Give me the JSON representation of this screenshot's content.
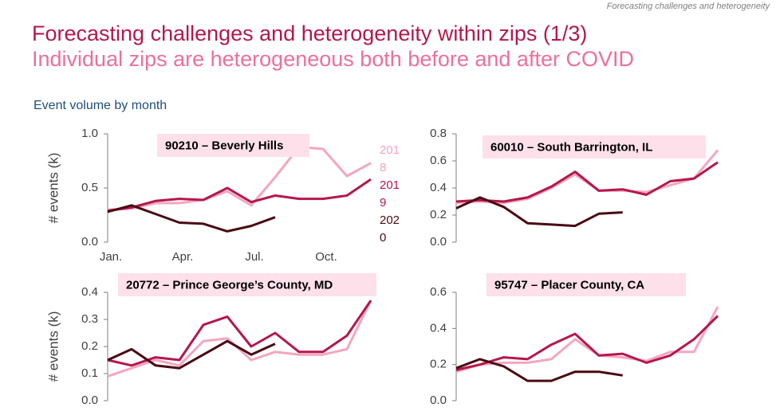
{
  "header": "Forecasting challenges and heterogeneity",
  "title": "Forecasting challenges and heterogeneity within zips (1/3)",
  "subtitle": "Individual zips are heterogeneous both before and after COVID",
  "section_title": "Event volume by month",
  "chart_data": [
    {
      "type": "line",
      "title": "90210 – Beverly Hills",
      "y_label": "# events (k)",
      "categories": [
        "Jan.",
        null,
        null,
        "Apr.",
        null,
        null,
        "Jul.",
        null,
        null,
        "Oct.",
        null,
        null
      ],
      "ylim": [
        0,
        1
      ],
      "yticks": [
        {
          "value": 0,
          "label": "0.0"
        },
        0.5,
        {
          "value": 1,
          "label": "1.0"
        }
      ],
      "legend": true,
      "series": [
        {
          "name": "2018",
          "color": "#f4a6bf",
          "values": [
            0.3,
            0.31,
            0.36,
            0.36,
            0.39,
            0.47,
            0.34,
            0.6,
            0.88,
            0.86,
            0.61,
            0.73
          ]
        },
        {
          "name": "2019",
          "color": "#b5174d",
          "values": [
            0.29,
            0.32,
            0.38,
            0.4,
            0.39,
            0.5,
            0.37,
            0.43,
            0.4,
            0.4,
            0.43,
            0.58
          ]
        },
        {
          "name": "2020",
          "color": "#4a0a12",
          "values": [
            0.28,
            0.34,
            0.26,
            0.18,
            0.17,
            0.1,
            0.15,
            0.23,
            null,
            null,
            null,
            null
          ]
        }
      ]
    },
    {
      "type": "line",
      "title": "60010 – South Barrington, IL",
      "ylim": [
        0,
        0.8
      ],
      "yticks": [
        {
          "value": 0,
          "label": "0.0"
        },
        0.2,
        0.4,
        0.6,
        0.8
      ],
      "series": [
        {
          "color": "#f4a6bf",
          "values": [
            0.29,
            0.3,
            0.29,
            0.32,
            0.4,
            0.5,
            0.38,
            0.38,
            0.37,
            0.42,
            0.47,
            0.68
          ]
        },
        {
          "color": "#b5174d",
          "values": [
            0.3,
            0.31,
            0.3,
            0.33,
            0.41,
            0.52,
            0.38,
            0.39,
            0.35,
            0.45,
            0.47,
            0.59
          ]
        },
        {
          "color": "#4a0a12",
          "values": [
            0.25,
            0.33,
            0.26,
            0.14,
            0.13,
            0.12,
            0.21,
            0.22,
            null,
            null,
            null,
            null
          ]
        }
      ]
    },
    {
      "type": "line",
      "title": "20772 – Prince George’s County, MD",
      "y_label": "# events (k)",
      "ylim": [
        0,
        0.4
      ],
      "yticks": [
        {
          "value": 0,
          "label": "0.0"
        },
        0.1,
        0.2,
        0.3,
        0.4
      ],
      "series": [
        {
          "color": "#f4a6bf",
          "values": [
            0.09,
            0.12,
            0.15,
            0.13,
            0.22,
            0.23,
            0.15,
            0.18,
            0.17,
            0.17,
            0.19,
            0.37
          ]
        },
        {
          "color": "#b5174d",
          "values": [
            0.15,
            0.13,
            0.16,
            0.15,
            0.28,
            0.31,
            0.2,
            0.25,
            0.18,
            0.18,
            0.24,
            0.37
          ]
        },
        {
          "color": "#4a0a12",
          "values": [
            0.15,
            0.19,
            0.13,
            0.12,
            0.17,
            0.22,
            0.17,
            0.21,
            null,
            null,
            null,
            null
          ]
        }
      ]
    },
    {
      "type": "line",
      "title": "95747 – Placer County, CA",
      "ylim": [
        0,
        0.6
      ],
      "yticks": [
        {
          "value": 0,
          "label": "0.0"
        },
        0.2,
        0.4,
        0.6
      ],
      "series": [
        {
          "color": "#f4a6bf",
          "values": [
            0.16,
            0.2,
            0.21,
            0.21,
            0.23,
            0.34,
            0.25,
            0.24,
            0.22,
            0.27,
            0.27,
            0.52
          ]
        },
        {
          "color": "#b5174d",
          "values": [
            0.17,
            0.2,
            0.24,
            0.23,
            0.31,
            0.37,
            0.25,
            0.26,
            0.21,
            0.25,
            0.34,
            0.47
          ]
        },
        {
          "color": "#4a0a12",
          "values": [
            0.18,
            0.23,
            0.19,
            0.11,
            0.11,
            0.16,
            0.16,
            0.14,
            null,
            null,
            null,
            null
          ]
        }
      ]
    }
  ]
}
